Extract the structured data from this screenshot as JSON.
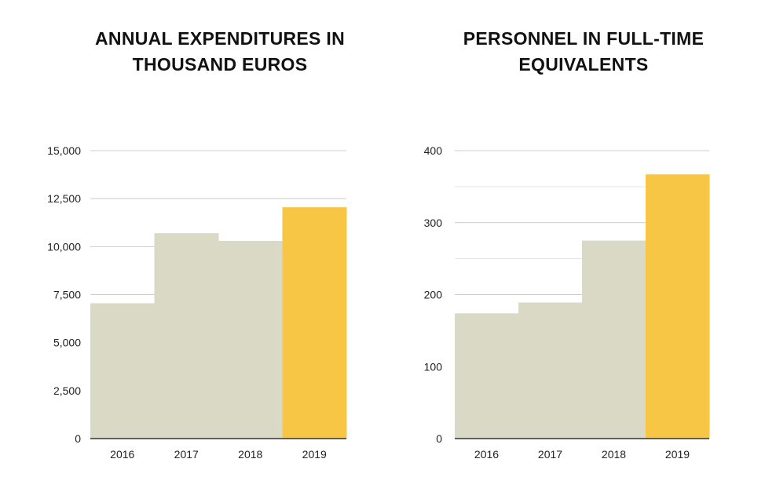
{
  "chart_data": [
    {
      "type": "bar",
      "title_lines": [
        "ANNUAL EXPENDITURES IN",
        "THOUSAND EUROS"
      ],
      "categories": [
        "2016",
        "2017",
        "2018",
        "2019"
      ],
      "values": [
        7050,
        10700,
        10300,
        12050
      ],
      "yticks": [
        "0",
        "2,500",
        "5,000",
        "7,500",
        "10,000",
        "12,500",
        "15,000"
      ],
      "ytick_values": [
        0,
        2500,
        5000,
        7500,
        10000,
        12500,
        15000
      ],
      "ylim": [
        0,
        15000
      ],
      "minor_gridlines": false,
      "highlight_index": 3,
      "xlabel": "",
      "ylabel": ""
    },
    {
      "type": "bar",
      "title_lines": [
        "PERSONNEL IN FULL-TIME",
        "EQUIVALENTS"
      ],
      "categories": [
        "2016",
        "2017",
        "2018",
        "2019"
      ],
      "values": [
        174,
        189,
        275,
        367
      ],
      "yticks": [
        "0",
        "100",
        "200",
        "300",
        "400"
      ],
      "ytick_values": [
        0,
        100,
        200,
        300,
        400
      ],
      "ylim": [
        0,
        400
      ],
      "minor_gridlines": true,
      "highlight_index": 3,
      "xlabel": "",
      "ylabel": ""
    }
  ],
  "colors": {
    "bar": "#d9d9c6",
    "highlight": "#f6c644",
    "grid": "#cccccc",
    "minor_grid": "#e6e6e6",
    "axis": "#333333"
  }
}
